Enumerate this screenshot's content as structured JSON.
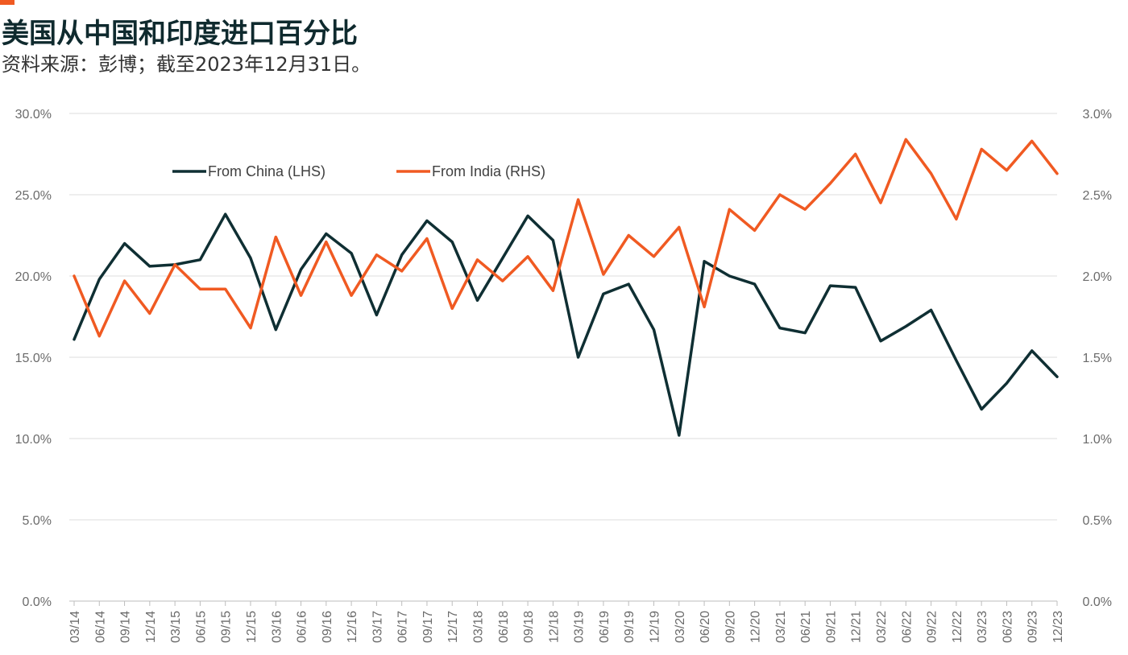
{
  "header": {
    "title": "美国从中国和印度进口百分比",
    "subtitle": "资料来源：彭博；截至2023年12月31日。"
  },
  "colors": {
    "china": "#0f2f33",
    "india": "#f05a22",
    "grid": "#dcdcdc",
    "accent": "#f05a22"
  },
  "chart_data": {
    "type": "line",
    "categories": [
      "03/14",
      "06/14",
      "09/14",
      "12/14",
      "03/15",
      "06/15",
      "09/15",
      "12/15",
      "03/16",
      "06/16",
      "09/16",
      "12/16",
      "03/17",
      "06/17",
      "09/17",
      "12/17",
      "03/18",
      "06/18",
      "09/18",
      "12/18",
      "03/19",
      "06/19",
      "09/19",
      "12/19",
      "03/20",
      "06/20",
      "09/20",
      "12/20",
      "03/21",
      "06/21",
      "09/21",
      "12/21",
      "03/22",
      "06/22",
      "09/22",
      "12/22",
      "03/23",
      "06/23",
      "09/23",
      "12/23"
    ],
    "y_left": {
      "ylim": [
        0,
        30
      ],
      "ticks": [
        "0.0%",
        "5.0%",
        "10.0%",
        "15.0%",
        "20.0%",
        "25.0%",
        "30.0%"
      ]
    },
    "y_right": {
      "ylim": [
        0,
        3
      ],
      "ticks": [
        "0.0%",
        "0.5%",
        "1.0%",
        "1.5%",
        "2.0%",
        "2.5%",
        "3.0%"
      ]
    },
    "grid": true,
    "legend_position": "top-left",
    "series": [
      {
        "name": "From China (LHS)",
        "axis": "left",
        "values": [
          16.1,
          19.8,
          22.0,
          20.6,
          20.7,
          21.0,
          23.8,
          21.1,
          16.7,
          20.4,
          22.6,
          21.4,
          17.6,
          21.3,
          23.4,
          22.1,
          18.5,
          21.1,
          23.7,
          22.2,
          15.0,
          18.9,
          19.5,
          16.7,
          10.2,
          20.9,
          20.0,
          19.5,
          16.8,
          16.5,
          19.4,
          19.3,
          16.0,
          16.9,
          17.9,
          14.8,
          11.8,
          13.4,
          15.4,
          13.8
        ]
      },
      {
        "name": "From India (RHS)",
        "axis": "right",
        "values": [
          2.0,
          1.63,
          1.97,
          1.77,
          2.07,
          1.92,
          1.92,
          1.68,
          2.24,
          1.88,
          2.21,
          1.88,
          2.13,
          2.03,
          2.23,
          1.8,
          2.1,
          1.97,
          2.12,
          1.91,
          2.47,
          2.01,
          2.25,
          2.12,
          2.3,
          1.81,
          2.41,
          2.28,
          2.5,
          2.41,
          2.57,
          2.75,
          2.45,
          2.84,
          2.63,
          2.35,
          2.78,
          2.65,
          2.83,
          2.63
        ]
      }
    ]
  }
}
